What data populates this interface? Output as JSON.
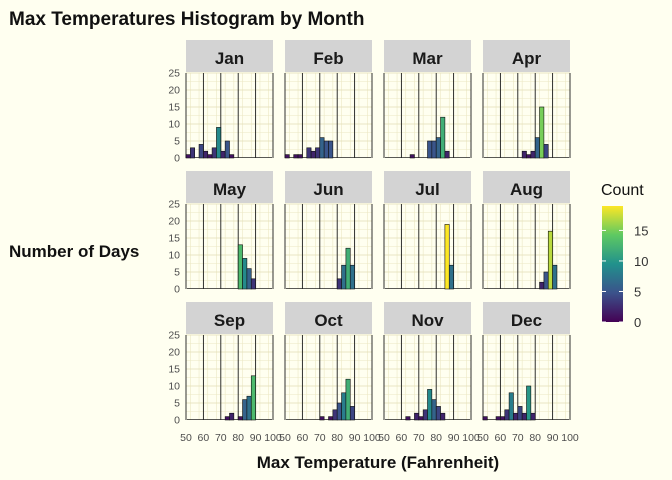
{
  "chart_data": {
    "type": "bar",
    "title": "Max Temperatures Histogram by Month",
    "xlabel": "Max Temperature (Fahrenheit)",
    "ylabel": "Number of Days",
    "xlim": [
      50,
      100
    ],
    "ylim": [
      0,
      25
    ],
    "x_ticks": [
      "50",
      "60",
      "70",
      "80",
      "90",
      "100"
    ],
    "y_ticks": [
      "0",
      "5",
      "10",
      "15",
      "20",
      "25"
    ],
    "bin_width": 2.5,
    "grid": true,
    "legend": {
      "title": "Count",
      "position": "right",
      "ticks": [
        "0",
        "5",
        "10",
        "15"
      ],
      "range": [
        0,
        19
      ],
      "colors": [
        "#440154",
        "#3b528b",
        "#21918c",
        "#5ec962",
        "#fde725"
      ]
    },
    "facets": [
      {
        "label": "Jan",
        "bins": [
          {
            "x": 51.25,
            "count": 1
          },
          {
            "x": 53.75,
            "count": 3
          },
          {
            "x": 58.75,
            "count": 4
          },
          {
            "x": 61.25,
            "count": 2
          },
          {
            "x": 63.75,
            "count": 1
          },
          {
            "x": 66.25,
            "count": 3
          },
          {
            "x": 68.75,
            "count": 9
          },
          {
            "x": 71.25,
            "count": 2
          },
          {
            "x": 73.75,
            "count": 5
          },
          {
            "x": 76.25,
            "count": 1
          }
        ]
      },
      {
        "label": "Feb",
        "bins": [
          {
            "x": 51.25,
            "count": 1
          },
          {
            "x": 56.25,
            "count": 1
          },
          {
            "x": 58.75,
            "count": 1
          },
          {
            "x": 63.75,
            "count": 3
          },
          {
            "x": 66.25,
            "count": 2
          },
          {
            "x": 68.75,
            "count": 3
          },
          {
            "x": 71.25,
            "count": 6
          },
          {
            "x": 73.75,
            "count": 5
          },
          {
            "x": 76.25,
            "count": 5
          }
        ]
      },
      {
        "label": "Mar",
        "bins": [
          {
            "x": 66.25,
            "count": 1
          },
          {
            "x": 76.25,
            "count": 5
          },
          {
            "x": 78.75,
            "count": 5
          },
          {
            "x": 81.25,
            "count": 6
          },
          {
            "x": 83.75,
            "count": 12
          },
          {
            "x": 86.25,
            "count": 2
          }
        ]
      },
      {
        "label": "Apr",
        "bins": [
          {
            "x": 73.75,
            "count": 2
          },
          {
            "x": 76.25,
            "count": 1
          },
          {
            "x": 78.75,
            "count": 2
          },
          {
            "x": 81.25,
            "count": 6
          },
          {
            "x": 83.75,
            "count": 15
          },
          {
            "x": 86.25,
            "count": 4
          }
        ]
      },
      {
        "label": "May",
        "bins": [
          {
            "x": 81.25,
            "count": 13
          },
          {
            "x": 83.75,
            "count": 9
          },
          {
            "x": 86.25,
            "count": 6
          },
          {
            "x": 88.75,
            "count": 3
          }
        ]
      },
      {
        "label": "Jun",
        "bins": [
          {
            "x": 81.25,
            "count": 3
          },
          {
            "x": 83.75,
            "count": 7
          },
          {
            "x": 86.25,
            "count": 12
          },
          {
            "x": 88.75,
            "count": 7
          }
        ]
      },
      {
        "label": "Jul",
        "bins": [
          {
            "x": 86.25,
            "count": 19
          },
          {
            "x": 88.75,
            "count": 7
          }
        ]
      },
      {
        "label": "Aug",
        "bins": [
          {
            "x": 83.75,
            "count": 2
          },
          {
            "x": 86.25,
            "count": 5
          },
          {
            "x": 88.75,
            "count": 17
          },
          {
            "x": 91.25,
            "count": 7
          }
        ]
      },
      {
        "label": "Sep",
        "bins": [
          {
            "x": 73.75,
            "count": 1
          },
          {
            "x": 76.25,
            "count": 2
          },
          {
            "x": 81.25,
            "count": 1
          },
          {
            "x": 83.75,
            "count": 6
          },
          {
            "x": 86.25,
            "count": 7
          },
          {
            "x": 88.75,
            "count": 13
          }
        ]
      },
      {
        "label": "Oct",
        "bins": [
          {
            "x": 71.25,
            "count": 1
          },
          {
            "x": 76.25,
            "count": 1
          },
          {
            "x": 78.75,
            "count": 3
          },
          {
            "x": 81.25,
            "count": 5
          },
          {
            "x": 83.75,
            "count": 8
          },
          {
            "x": 86.25,
            "count": 12
          },
          {
            "x": 88.75,
            "count": 4
          }
        ]
      },
      {
        "label": "Nov",
        "bins": [
          {
            "x": 63.75,
            "count": 1
          },
          {
            "x": 68.75,
            "count": 2
          },
          {
            "x": 71.25,
            "count": 1
          },
          {
            "x": 73.75,
            "count": 3
          },
          {
            "x": 76.25,
            "count": 9
          },
          {
            "x": 78.75,
            "count": 6
          },
          {
            "x": 81.25,
            "count": 4
          },
          {
            "x": 83.75,
            "count": 2
          }
        ]
      },
      {
        "label": "Dec",
        "bins": [
          {
            "x": 51.25,
            "count": 1
          },
          {
            "x": 58.75,
            "count": 1
          },
          {
            "x": 61.25,
            "count": 1
          },
          {
            "x": 63.75,
            "count": 3
          },
          {
            "x": 66.25,
            "count": 8
          },
          {
            "x": 68.75,
            "count": 2
          },
          {
            "x": 71.25,
            "count": 4
          },
          {
            "x": 73.75,
            "count": 2
          },
          {
            "x": 76.25,
            "count": 10
          },
          {
            "x": 78.75,
            "count": 2
          }
        ]
      }
    ]
  }
}
